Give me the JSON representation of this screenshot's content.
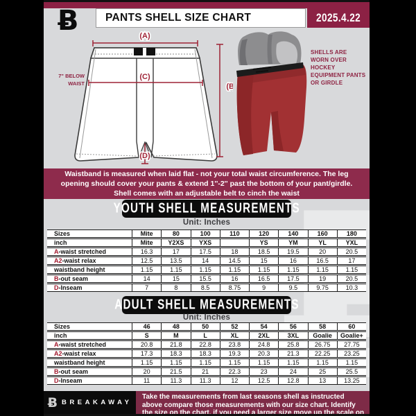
{
  "header": {
    "title": "PANTS SHELL SIZE CHART",
    "date": "2025.4.22",
    "logo_glyph": "Ƀ"
  },
  "diagram": {
    "label_a": "(A)",
    "label_b": "(B)",
    "label_c": "(C)",
    "label_d": "(D)",
    "waist_note_line1": "7\" BELOW",
    "waist_note_line2": "WAIST",
    "side_note": "SHELLS ARE WORN OVER HOCKEY EQUIPMENT PANTS OR GIRDLE"
  },
  "notice_band": {
    "text": "Waistband is measured when laid flat - not your total waist circumference. The leg opening should cover your pants & extend 1''-2'' past the bottom of your pant/girdle. Shell comes with an adjustable belt to cinch the waist"
  },
  "youth": {
    "banner": "YOUTH SHELL MEASUREMENTS",
    "unit": "Unit: Inches",
    "rows": [
      {
        "prefix": "",
        "label": "Sizes",
        "bold": true,
        "values": [
          "Mite",
          "80",
          "100",
          "110",
          "120",
          "140",
          "160",
          "180"
        ]
      },
      {
        "prefix": "",
        "label": "inch",
        "bold": true,
        "values": [
          "Mite",
          "Y2XS",
          "YXS",
          "",
          "YS",
          "YM",
          "YL",
          "YXL"
        ]
      },
      {
        "prefix": "A",
        "label": "-waist stretched",
        "bold": false,
        "values": [
          "16.3",
          "17",
          "17.5",
          "18",
          "18.5",
          "19.5",
          "20",
          "20.5"
        ]
      },
      {
        "prefix": "A2",
        "label": "-waist relax",
        "bold": false,
        "values": [
          "12.5",
          "13.5",
          "14",
          "14.5",
          "15",
          "16",
          "16.5",
          "17"
        ]
      },
      {
        "prefix": "",
        "label": "waistband height",
        "bold": false,
        "values": [
          "1.15",
          "1.15",
          "1.15",
          "1.15",
          "1.15",
          "1.15",
          "1.15",
          "1.15"
        ]
      },
      {
        "prefix": "B",
        "label": "-out seam",
        "bold": false,
        "values": [
          "14",
          "15",
          "15.5",
          "16",
          "16.5",
          "17.5",
          "19",
          "20.5"
        ]
      },
      {
        "prefix": "D",
        "label": "-Inseam",
        "bold": false,
        "values": [
          "7",
          "8",
          "8.5",
          "8.75",
          "9",
          "9.5",
          "9.75",
          "10.3"
        ]
      }
    ]
  },
  "adult": {
    "banner": "ADULT SHELL MEASUREMENTS",
    "unit": "Unit: Inches",
    "rows": [
      {
        "prefix": "",
        "label": "Sizes",
        "bold": true,
        "values": [
          "46",
          "48",
          "50",
          "52",
          "54",
          "56",
          "58",
          "60"
        ]
      },
      {
        "prefix": "",
        "label": "inch",
        "bold": true,
        "values": [
          "S",
          "M",
          "L",
          "XL",
          "2XL",
          "3XL",
          "Goalie",
          "Goalie+"
        ]
      },
      {
        "prefix": "A",
        "label": "-waist stretched",
        "bold": false,
        "values": [
          "20.8",
          "21.8",
          "22.8",
          "23.8",
          "24.8",
          "25.8",
          "26.75",
          "27.75"
        ]
      },
      {
        "prefix": "A2",
        "label": "-waist relax",
        "bold": false,
        "values": [
          "17.3",
          "18.3",
          "18.3",
          "19.3",
          "20.3",
          "21.3",
          "22.25",
          "23.25"
        ]
      },
      {
        "prefix": "",
        "label": "waistband height",
        "bold": false,
        "values": [
          "1.15",
          "1.15",
          "1.15",
          "1.15",
          "1.15",
          "1.15",
          "1.15",
          "1.15"
        ]
      },
      {
        "prefix": "B",
        "label": "-out seam",
        "bold": false,
        "values": [
          "20",
          "21.5",
          "21",
          "22.3",
          "23",
          "24",
          "25",
          "25.5"
        ]
      },
      {
        "prefix": "D",
        "label": "-Inseam",
        "bold": false,
        "values": [
          "11",
          "11.3",
          "11.3",
          "12",
          "12.5",
          "12.8",
          "13",
          "13.25"
        ]
      }
    ]
  },
  "footer": {
    "brand": "BREAKAWAY",
    "logo_glyph": "Ƀ",
    "text": "Take the measurements from last seasons shell as instructed above compare those measurements  with our size chart. Identify the size on the chart, if you need a larger size move up the scale on the chart"
  },
  "watermark_glyph": "Ƀ",
  "colors": {
    "header_maroon": "#8c2144",
    "band_maroon": "#8e2b4c",
    "footer_maroon": "#7e2b47",
    "accent_red": "#9e2235",
    "table_prefix_red": "#a3192e",
    "page_gray": "#d8d9db",
    "banner_black": "#0c0c0c"
  }
}
